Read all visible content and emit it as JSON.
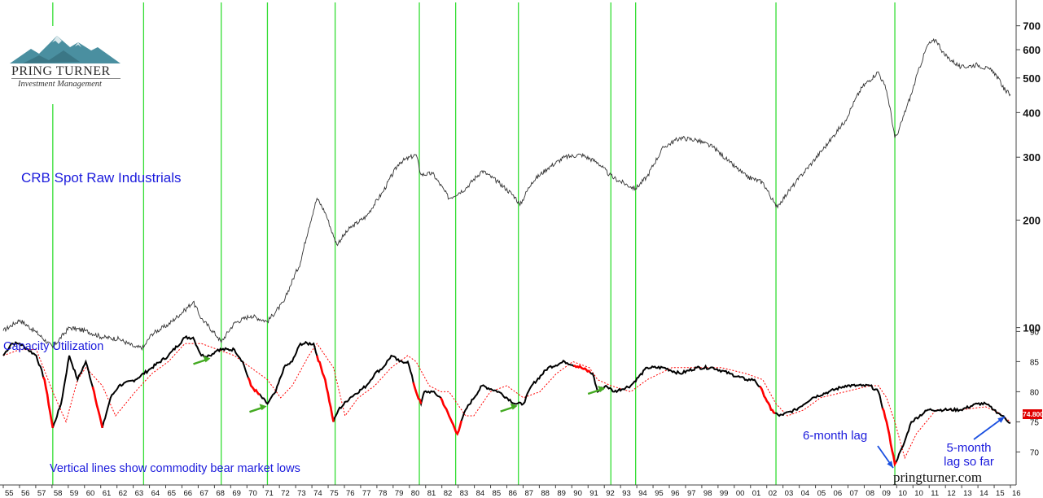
{
  "brand": {
    "name": "PRING TURNER",
    "subtitle": "Investment Management",
    "website": "pringturner.com"
  },
  "chart_data": {
    "type": "line",
    "x_axis": {
      "ticks": [
        "55",
        "56",
        "57",
        "58",
        "59",
        "60",
        "61",
        "62",
        "63",
        "64",
        "65",
        "66",
        "67",
        "68",
        "69",
        "70",
        "71",
        "72",
        "73",
        "74",
        "75",
        "76",
        "77",
        "78",
        "79",
        "80",
        "81",
        "82",
        "83",
        "84",
        "85",
        "86",
        "87",
        "88",
        "89",
        "90",
        "91",
        "92",
        "93",
        "94",
        "95",
        "96",
        "97",
        "98",
        "99",
        "00",
        "01",
        "02",
        "03",
        "04",
        "05",
        "06",
        "07",
        "08",
        "09",
        "10",
        "10",
        "11",
        "12",
        "13",
        "14",
        "15",
        "16"
      ],
      "range": [
        1955,
        2016
      ]
    },
    "vertical_lines": {
      "label": "Vertical lines show commodity bear market lows",
      "dates": [
        1958.0,
        1963.5,
        1968.2,
        1971.0,
        1975.1,
        1980.2,
        1982.4,
        1986.2,
        1991.8,
        1993.3,
        2001.8,
        2009.0
      ]
    },
    "panels": [
      {
        "name": "CRB Spot Raw Industrials",
        "scale": "log",
        "ylim": [
          60,
          760
        ],
        "yticks": [
          "100",
          "200",
          "300",
          "400",
          "500",
          "600",
          "700"
        ],
        "series": [
          {
            "name": "CRB Spot Raw Industrials",
            "color": "#333333",
            "x": [
              1955.0,
              1956.0,
              1957.0,
              1958.0,
              1959.0,
              1960.0,
              1961.0,
              1962.0,
              1963.0,
              1963.5,
              1964.0,
              1965.0,
              1966.0,
              1966.5,
              1967.0,
              1968.0,
              1968.2,
              1969.0,
              1970.0,
              1971.0,
              1972.0,
              1973.0,
              1973.5,
              1974.0,
              1974.5,
              1975.0,
              1975.2,
              1976.0,
              1977.0,
              1978.0,
              1979.0,
              1980.0,
              1980.3,
              1981.0,
              1982.0,
              1983.0,
              1984.0,
              1985.0,
              1986.0,
              1986.3,
              1987.0,
              1988.0,
              1989.0,
              1990.0,
              1991.0,
              1991.7,
              1992.0,
              1993.0,
              1993.3,
              1994.0,
              1995.0,
              1996.0,
              1997.0,
              1998.0,
              1999.0,
              2000.0,
              2001.0,
              2001.8,
              2002.0,
              2003.0,
              2004.0,
              2005.0,
              2006.0,
              2007.0,
              2008.0,
              2008.5,
              2009.0,
              2009.2,
              2010.0,
              2011.0,
              2011.5,
              2012.0,
              2013.0,
              2014.0,
              2015.0,
              2015.7,
              2016.0
            ],
            "y": [
              98,
              105,
              97,
              88,
              100,
              98,
              94,
              93,
              88,
              88,
              96,
              102,
              112,
              118,
              106,
              94,
              91,
              103,
              108,
              104,
              118,
              152,
              190,
              230,
              210,
              180,
              171,
              190,
              205,
              240,
              290,
              305,
              268,
              270,
              230,
              245,
              275,
              255,
              232,
              220,
              255,
              280,
              300,
              305,
              290,
              268,
              262,
              248,
              245,
              265,
              320,
              340,
              335,
              320,
              290,
              265,
              255,
              218,
              222,
              255,
              290,
              330,
              380,
              470,
              520,
              460,
              340,
              350,
              450,
              620,
              640,
              580,
              535,
              545,
              520,
              460,
              450
            ]
          }
        ]
      },
      {
        "name": "Capacity Utilization",
        "scale": "linear",
        "ylim": [
          66,
          91
        ],
        "yticks": [
          "70",
          "75",
          "80",
          "85",
          "90"
        ],
        "last_value": "74.800",
        "series": [
          {
            "name": "Capacity Utilization",
            "color": "#000000",
            "x": [
              1955.0,
              1955.5,
              1956.0,
              1956.5,
              1957.0,
              1957.5,
              1958.0,
              1958.5,
              1959.0,
              1959.5,
              1960.0,
              1960.5,
              1961.0,
              1961.5,
              1962.0,
              1963.0,
              1964.0,
              1965.0,
              1966.0,
              1966.5,
              1967.0,
              1967.5,
              1968.0,
              1969.0,
              1969.5,
              1970.0,
              1971.0,
              1971.5,
              1972.0,
              1972.5,
              1973.0,
              1973.8,
              1974.0,
              1974.5,
              1975.0,
              1975.3,
              1976.0,
              1977.0,
              1977.5,
              1978.0,
              1978.5,
              1979.0,
              1979.5,
              1980.0,
              1980.3,
              1980.5,
              1981.0,
              1981.5,
              1982.0,
              1982.5,
              1983.0,
              1984.0,
              1985.0,
              1986.0,
              1986.5,
              1987.0,
              1988.0,
              1989.0,
              1990.0,
              1990.7,
              1991.0,
              1991.5,
              1992.0,
              1993.0,
              1994.0,
              1995.0,
              1996.0,
              1997.0,
              1998.0,
              1999.0,
              2000.0,
              2000.5,
              2001.0,
              2001.5,
              2002.0,
              2003.0,
              2004.0,
              2005.0,
              2006.0,
              2007.0,
              2007.5,
              2008.0,
              2008.5,
              2009.0,
              2009.5,
              2010.0,
              2011.0,
              2012.0,
              2013.0,
              2014.0,
              2014.5,
              2015.0,
              2015.5,
              2016.0
            ],
            "y": [
              86,
              88,
              88,
              87,
              86,
              82,
              74,
              78,
              86,
              82,
              85,
              80,
              74,
              79,
              81,
              82,
              84,
              86,
              89,
              89,
              86,
              86,
              87,
              87,
              85,
              81,
              78,
              80,
              84,
              85,
              88,
              88,
              86,
              82,
              75,
              77,
              79,
              81,
              83,
              84,
              86,
              85,
              85,
              80,
              78,
              80,
              80,
              79,
              76,
              73,
              77,
              81,
              80,
              78,
              78,
              81,
              84,
              85,
              84,
              83,
              80,
              81,
              80,
              81,
              84,
              84,
              83,
              84,
              84,
              83,
              82,
              82,
              80,
              77,
              76,
              77,
              79,
              80,
              81,
              81,
              81,
              80,
              75,
              68,
              71,
              75,
              77,
              77,
              77,
              78,
              78,
              77,
              76,
              74.8
            ]
          },
          {
            "name": "",
            "color": "#ff0000",
            "style": "dotted",
            "x": [
              1955.0,
              1956.0,
              1957.0,
              1958.0,
              1958.8,
              1959.5,
              1960.0,
              1961.0,
              1961.8,
              1963.0,
              1964.0,
              1965.0,
              1966.0,
              1967.0,
              1968.0,
              1969.0,
              1970.0,
              1971.0,
              1971.8,
              1972.5,
              1973.5,
              1974.0,
              1975.0,
              1975.7,
              1976.5,
              1977.5,
              1978.5,
              1979.5,
              1980.0,
              1980.8,
              1981.5,
              1982.0,
              1983.0,
              1983.5,
              1984.5,
              1985.5,
              1986.5,
              1987.5,
              1988.5,
              1989.5,
              1990.5,
              1991.0,
              1991.8,
              1993.0,
              1994.0,
              1995.5,
              1997.0,
              1998.5,
              2000.0,
              2001.0,
              2001.8,
              2002.5,
              2003.5,
              2004.5,
              2006.0,
              2007.5,
              2008.0,
              2008.5,
              2009.0,
              2009.6,
              2010.3,
              2011.5,
              2013.0,
              2014.5,
              2015.3,
              2016.0
            ],
            "y": [
              86,
              87,
              87,
              80,
              75,
              82,
              84,
              81,
              76,
              80,
              83,
              85,
              88,
              88,
              87,
              86,
              84,
              82,
              79,
              81,
              86,
              88,
              84,
              76,
              79,
              81,
              84,
              86,
              85,
              81,
              80,
              80,
              76,
              76,
              80,
              81,
              79,
              80,
              83,
              85,
              84,
              82,
              81,
              80,
              82,
              84,
              84,
              84,
              83,
              82,
              78,
              76,
              77,
              79,
              80,
              81,
              81,
              79,
              75,
              69,
              73,
              77,
              77,
              77.5,
              76.5,
              75
            ]
          }
        ],
        "highlights": [
          {
            "name": "declines",
            "color": "#ff0000",
            "ranges": [
              [
                1957.4,
                1958.0
              ],
              [
                1960.4,
                1961.0
              ],
              [
                1969.8,
                1970.6
              ],
              [
                1974.0,
                1975.0
              ],
              [
                1979.8,
                1980.3
              ],
              [
                1981.5,
                1982.8
              ],
              [
                1989.5,
                1990.6
              ],
              [
                2000.8,
                2001.8
              ],
              [
                2008.2,
                2009.1
              ]
            ]
          },
          {
            "name": "green arrows",
            "color": "#44aa22",
            "at": [
              1967.6,
              1971.0,
              1986.2,
              1991.5
            ]
          }
        ]
      }
    ],
    "annotations": [
      {
        "text": "6-month lag",
        "color": "#1a1adc"
      },
      {
        "text": "5-month lag so far",
        "color": "#1a1adc"
      }
    ]
  }
}
